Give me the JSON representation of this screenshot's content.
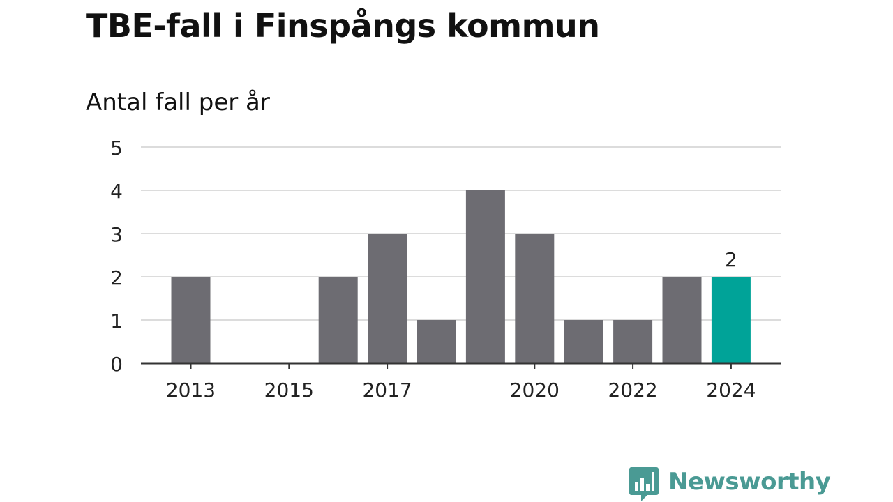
{
  "title": "TBE-fall i Finspångs kommun",
  "subtitle": "Antal fall per år",
  "brand": {
    "name": "Newsworthy",
    "icon": "newsworthy-logo-icon",
    "color": "#4a9a94"
  },
  "colors": {
    "bar": "#6d6c72",
    "highlight": "#00a398",
    "grid": "#dcdcdc",
    "axis": "#333333"
  },
  "chart_data": {
    "type": "bar",
    "title": "TBE-fall i Finspångs kommun",
    "subtitle": "Antal fall per år",
    "x": [
      2013,
      2014,
      2015,
      2016,
      2017,
      2018,
      2019,
      2020,
      2021,
      2022,
      2023,
      2024
    ],
    "values": [
      2,
      0,
      0,
      2,
      3,
      1,
      4,
      3,
      1,
      1,
      2,
      2
    ],
    "highlight_index": 11,
    "highlight_label": "2",
    "x_tick_labels": [
      "2013",
      "2015",
      "2017",
      "2020",
      "2022",
      "2024"
    ],
    "y_ticks": [
      0,
      1,
      2,
      3,
      4,
      5
    ],
    "ylim": [
      0,
      5
    ],
    "grid": true,
    "legend": "none"
  }
}
